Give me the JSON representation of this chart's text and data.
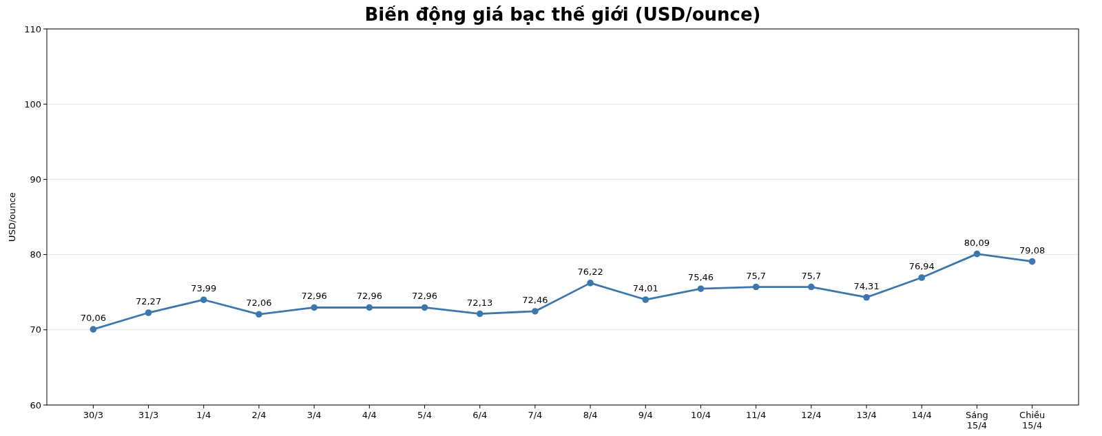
{
  "chart_data": {
    "type": "line",
    "title": "Biến động giá bạc thế giới (USD/ounce)",
    "ylabel": "USD/ounce",
    "categories": [
      "30/3",
      "31/3",
      "1/4",
      "2/4",
      "3/4",
      "4/4",
      "5/4",
      "6/4",
      "7/4",
      "8/4",
      "9/4",
      "10/4",
      "11/4",
      "12/4",
      "13/4",
      "14/4",
      "Sáng\n15/4",
      "Chiều\n15/4"
    ],
    "series": [
      {
        "color": "#3c76ad",
        "values": [
          70.06,
          72.27,
          73.99,
          72.06,
          72.96,
          72.96,
          72.96,
          72.13,
          72.46,
          76.22,
          74.01,
          75.46,
          75.7,
          75.7,
          74.31,
          76.94,
          80.09,
          79.08
        ],
        "value_labels": [
          "70,06",
          "72,27",
          "73,99",
          "72,06",
          "72,96",
          "72,96",
          "72,96",
          "72,13",
          "72,46",
          "76,22",
          "74,01",
          "75,46",
          "75,7",
          "75,7",
          "74,31",
          "76,94",
          "80,09",
          "79,08"
        ]
      }
    ],
    "ylim": [
      60,
      110
    ],
    "yticks": [
      60,
      70,
      80,
      90,
      100,
      110
    ],
    "grid": "y",
    "marker": "circle",
    "line_style": "solid"
  }
}
